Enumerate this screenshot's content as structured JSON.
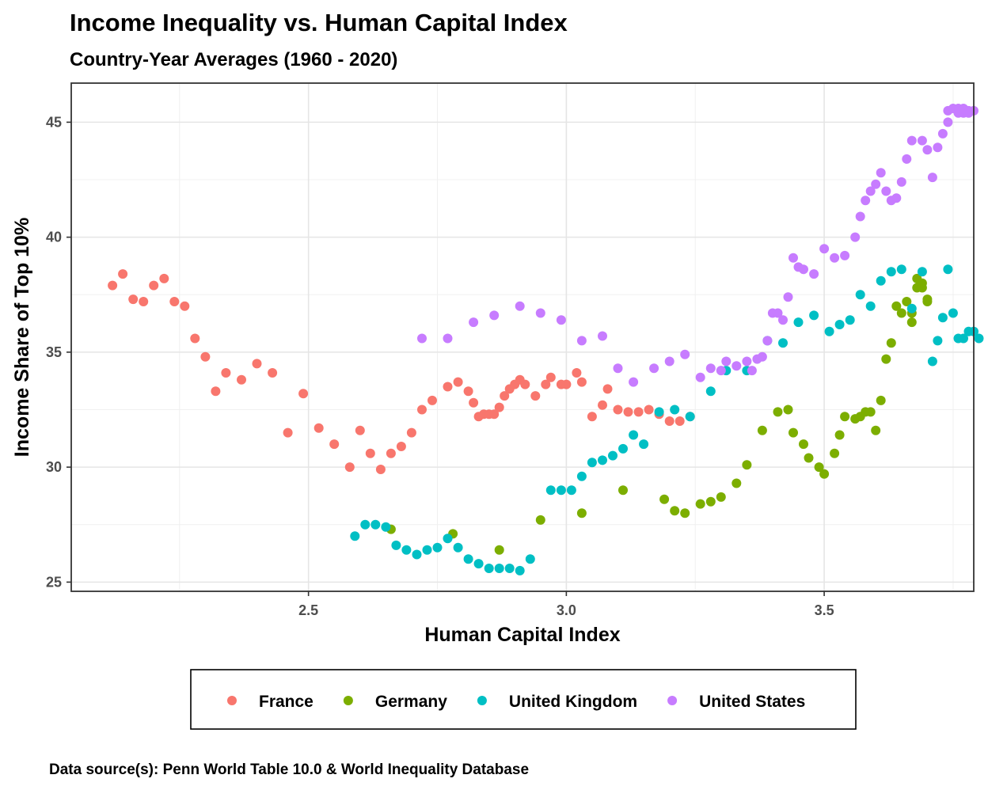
{
  "chart_data": {
    "type": "scatter",
    "title": "Income Inequality vs. Human Capital Index",
    "subtitle": "Country-Year Averages (1960 - 2020)",
    "xlabel": "Human Capital Index",
    "ylabel": "Income Share of Top 10%",
    "caption": "Data source(s): Penn World Table 10.0 & World Inequality Database",
    "xlim": [
      2.04,
      3.79
    ],
    "ylim": [
      24.6,
      46.7
    ],
    "x_ticks": [
      2.5,
      3.0,
      3.5
    ],
    "x_tick_labels": [
      "2.5",
      "3.0",
      "3.5"
    ],
    "y_ticks": [
      25,
      30,
      35,
      40,
      45
    ],
    "y_tick_labels": [
      "25",
      "30",
      "35",
      "40",
      "45"
    ],
    "grid": true,
    "legend_position": "bottom",
    "series": [
      {
        "name": "France",
        "color": "#F8766D",
        "points": [
          [
            2.12,
            37.9
          ],
          [
            2.14,
            38.4
          ],
          [
            2.16,
            37.3
          ],
          [
            2.18,
            37.2
          ],
          [
            2.2,
            37.9
          ],
          [
            2.22,
            38.2
          ],
          [
            2.24,
            37.2
          ],
          [
            2.26,
            37.0
          ],
          [
            2.28,
            35.6
          ],
          [
            2.3,
            34.8
          ],
          [
            2.32,
            33.3
          ],
          [
            2.34,
            34.1
          ],
          [
            2.37,
            33.8
          ],
          [
            2.4,
            34.5
          ],
          [
            2.43,
            34.1
          ],
          [
            2.46,
            31.5
          ],
          [
            2.49,
            33.2
          ],
          [
            2.52,
            31.7
          ],
          [
            2.55,
            31.0
          ],
          [
            2.58,
            30.0
          ],
          [
            2.6,
            31.6
          ],
          [
            2.62,
            30.6
          ],
          [
            2.64,
            29.9
          ],
          [
            2.66,
            30.6
          ],
          [
            2.68,
            30.9
          ],
          [
            2.7,
            31.5
          ],
          [
            2.72,
            32.5
          ],
          [
            2.74,
            32.9
          ],
          [
            2.77,
            33.5
          ],
          [
            2.79,
            33.7
          ],
          [
            2.81,
            33.3
          ],
          [
            2.82,
            32.8
          ],
          [
            2.83,
            32.2
          ],
          [
            2.84,
            32.3
          ],
          [
            2.85,
            32.3
          ],
          [
            2.86,
            32.3
          ],
          [
            2.87,
            32.6
          ],
          [
            2.88,
            33.1
          ],
          [
            2.89,
            33.4
          ],
          [
            2.9,
            33.6
          ],
          [
            2.91,
            33.8
          ],
          [
            2.92,
            33.6
          ],
          [
            2.94,
            33.1
          ],
          [
            2.96,
            33.6
          ],
          [
            2.97,
            33.9
          ],
          [
            2.99,
            33.6
          ],
          [
            3.0,
            33.6
          ],
          [
            3.02,
            34.1
          ],
          [
            3.03,
            33.7
          ],
          [
            3.05,
            32.2
          ],
          [
            3.07,
            32.7
          ],
          [
            3.08,
            33.4
          ],
          [
            3.1,
            32.5
          ],
          [
            3.12,
            32.4
          ],
          [
            3.14,
            32.4
          ],
          [
            3.16,
            32.5
          ],
          [
            3.18,
            32.3
          ],
          [
            3.2,
            32.0
          ],
          [
            3.22,
            32.0
          ],
          [
            3.24,
            32.2
          ]
        ]
      },
      {
        "name": "Germany",
        "color": "#7CAE00",
        "points": [
          [
            2.66,
            27.3
          ],
          [
            2.78,
            27.1
          ],
          [
            2.87,
            26.4
          ],
          [
            2.95,
            27.7
          ],
          [
            3.03,
            28.0
          ],
          [
            3.11,
            29.0
          ],
          [
            3.19,
            28.6
          ],
          [
            3.21,
            28.1
          ],
          [
            3.23,
            28.0
          ],
          [
            3.26,
            28.4
          ],
          [
            3.28,
            28.5
          ],
          [
            3.3,
            28.7
          ],
          [
            3.33,
            29.3
          ],
          [
            3.35,
            30.1
          ],
          [
            3.38,
            31.6
          ],
          [
            3.41,
            32.4
          ],
          [
            3.43,
            32.5
          ],
          [
            3.44,
            31.5
          ],
          [
            3.46,
            31.0
          ],
          [
            3.47,
            30.4
          ],
          [
            3.49,
            30.0
          ],
          [
            3.5,
            29.7
          ],
          [
            3.52,
            30.6
          ],
          [
            3.53,
            31.4
          ],
          [
            3.54,
            32.2
          ],
          [
            3.56,
            32.1
          ],
          [
            3.57,
            32.2
          ],
          [
            3.58,
            32.4
          ],
          [
            3.59,
            32.4
          ],
          [
            3.6,
            31.6
          ],
          [
            3.61,
            32.9
          ],
          [
            3.62,
            34.7
          ],
          [
            3.63,
            35.4
          ],
          [
            3.64,
            37.0
          ],
          [
            3.65,
            36.7
          ],
          [
            3.66,
            37.2
          ],
          [
            3.67,
            36.7
          ],
          [
            3.67,
            36.3
          ],
          [
            3.68,
            37.8
          ],
          [
            3.68,
            38.2
          ],
          [
            3.69,
            38.0
          ],
          [
            3.69,
            37.8
          ],
          [
            3.7,
            37.2
          ],
          [
            3.7,
            37.3
          ]
        ]
      },
      {
        "name": "United Kingdom",
        "color": "#00BFC4",
        "points": [
          [
            2.59,
            27.0
          ],
          [
            2.61,
            27.5
          ],
          [
            2.63,
            27.5
          ],
          [
            2.65,
            27.4
          ],
          [
            2.67,
            26.6
          ],
          [
            2.69,
            26.4
          ],
          [
            2.71,
            26.2
          ],
          [
            2.73,
            26.4
          ],
          [
            2.75,
            26.5
          ],
          [
            2.77,
            26.9
          ],
          [
            2.79,
            26.5
          ],
          [
            2.81,
            26.0
          ],
          [
            2.83,
            25.8
          ],
          [
            2.85,
            25.6
          ],
          [
            2.87,
            25.6
          ],
          [
            2.89,
            25.6
          ],
          [
            2.91,
            25.5
          ],
          [
            2.93,
            26.0
          ],
          [
            2.97,
            29.0
          ],
          [
            2.99,
            29.0
          ],
          [
            3.01,
            29.0
          ],
          [
            3.03,
            29.6
          ],
          [
            3.05,
            30.2
          ],
          [
            3.07,
            30.3
          ],
          [
            3.09,
            30.5
          ],
          [
            3.11,
            30.8
          ],
          [
            3.13,
            31.4
          ],
          [
            3.15,
            31.0
          ],
          [
            3.18,
            32.4
          ],
          [
            3.21,
            32.5
          ],
          [
            3.24,
            32.2
          ],
          [
            3.28,
            33.3
          ],
          [
            3.31,
            34.2
          ],
          [
            3.35,
            34.2
          ],
          [
            3.39,
            35.5
          ],
          [
            3.42,
            35.4
          ],
          [
            3.45,
            36.3
          ],
          [
            3.48,
            36.6
          ],
          [
            3.51,
            35.9
          ],
          [
            3.53,
            36.2
          ],
          [
            3.55,
            36.4
          ],
          [
            3.57,
            37.5
          ],
          [
            3.59,
            37.0
          ],
          [
            3.61,
            38.1
          ],
          [
            3.63,
            38.5
          ],
          [
            3.65,
            38.6
          ],
          [
            3.67,
            36.9
          ],
          [
            3.69,
            38.5
          ],
          [
            3.71,
            34.6
          ],
          [
            3.72,
            35.5
          ],
          [
            3.73,
            36.5
          ],
          [
            3.74,
            38.6
          ],
          [
            3.75,
            36.7
          ],
          [
            3.76,
            35.6
          ],
          [
            3.77,
            35.6
          ],
          [
            3.78,
            35.9
          ],
          [
            3.79,
            35.9
          ],
          [
            3.8,
            35.6
          ]
        ]
      },
      {
        "name": "United States",
        "color": "#C77CFF",
        "points": [
          [
            2.72,
            35.6
          ],
          [
            2.77,
            35.6
          ],
          [
            2.82,
            36.3
          ],
          [
            2.86,
            36.6
          ],
          [
            2.91,
            37.0
          ],
          [
            2.95,
            36.7
          ],
          [
            2.99,
            36.4
          ],
          [
            3.03,
            35.5
          ],
          [
            3.07,
            35.7
          ],
          [
            3.1,
            34.3
          ],
          [
            3.13,
            33.7
          ],
          [
            3.17,
            34.3
          ],
          [
            3.2,
            34.6
          ],
          [
            3.23,
            34.9
          ],
          [
            3.26,
            33.9
          ],
          [
            3.28,
            34.3
          ],
          [
            3.3,
            34.2
          ],
          [
            3.31,
            34.6
          ],
          [
            3.33,
            34.4
          ],
          [
            3.35,
            34.6
          ],
          [
            3.36,
            34.2
          ],
          [
            3.37,
            34.7
          ],
          [
            3.38,
            34.8
          ],
          [
            3.39,
            35.5
          ],
          [
            3.4,
            36.7
          ],
          [
            3.41,
            36.7
          ],
          [
            3.42,
            36.4
          ],
          [
            3.43,
            37.4
          ],
          [
            3.44,
            39.1
          ],
          [
            3.45,
            38.7
          ],
          [
            3.46,
            38.6
          ],
          [
            3.48,
            38.4
          ],
          [
            3.5,
            39.5
          ],
          [
            3.52,
            39.1
          ],
          [
            3.54,
            39.2
          ],
          [
            3.56,
            40.0
          ],
          [
            3.57,
            40.9
          ],
          [
            3.58,
            41.6
          ],
          [
            3.59,
            42.0
          ],
          [
            3.6,
            42.3
          ],
          [
            3.61,
            42.8
          ],
          [
            3.62,
            42.0
          ],
          [
            3.63,
            41.6
          ],
          [
            3.64,
            41.7
          ],
          [
            3.65,
            42.4
          ],
          [
            3.66,
            43.4
          ],
          [
            3.67,
            44.2
          ],
          [
            3.69,
            44.2
          ],
          [
            3.7,
            43.8
          ],
          [
            3.71,
            42.6
          ],
          [
            3.72,
            43.9
          ],
          [
            3.73,
            44.5
          ],
          [
            3.74,
            45.5
          ],
          [
            3.74,
            45.0
          ],
          [
            3.75,
            45.6
          ],
          [
            3.76,
            45.6
          ],
          [
            3.76,
            45.4
          ],
          [
            3.77,
            45.6
          ],
          [
            3.77,
            45.4
          ],
          [
            3.78,
            45.5
          ],
          [
            3.78,
            45.4
          ],
          [
            3.79,
            45.5
          ]
        ]
      }
    ]
  }
}
